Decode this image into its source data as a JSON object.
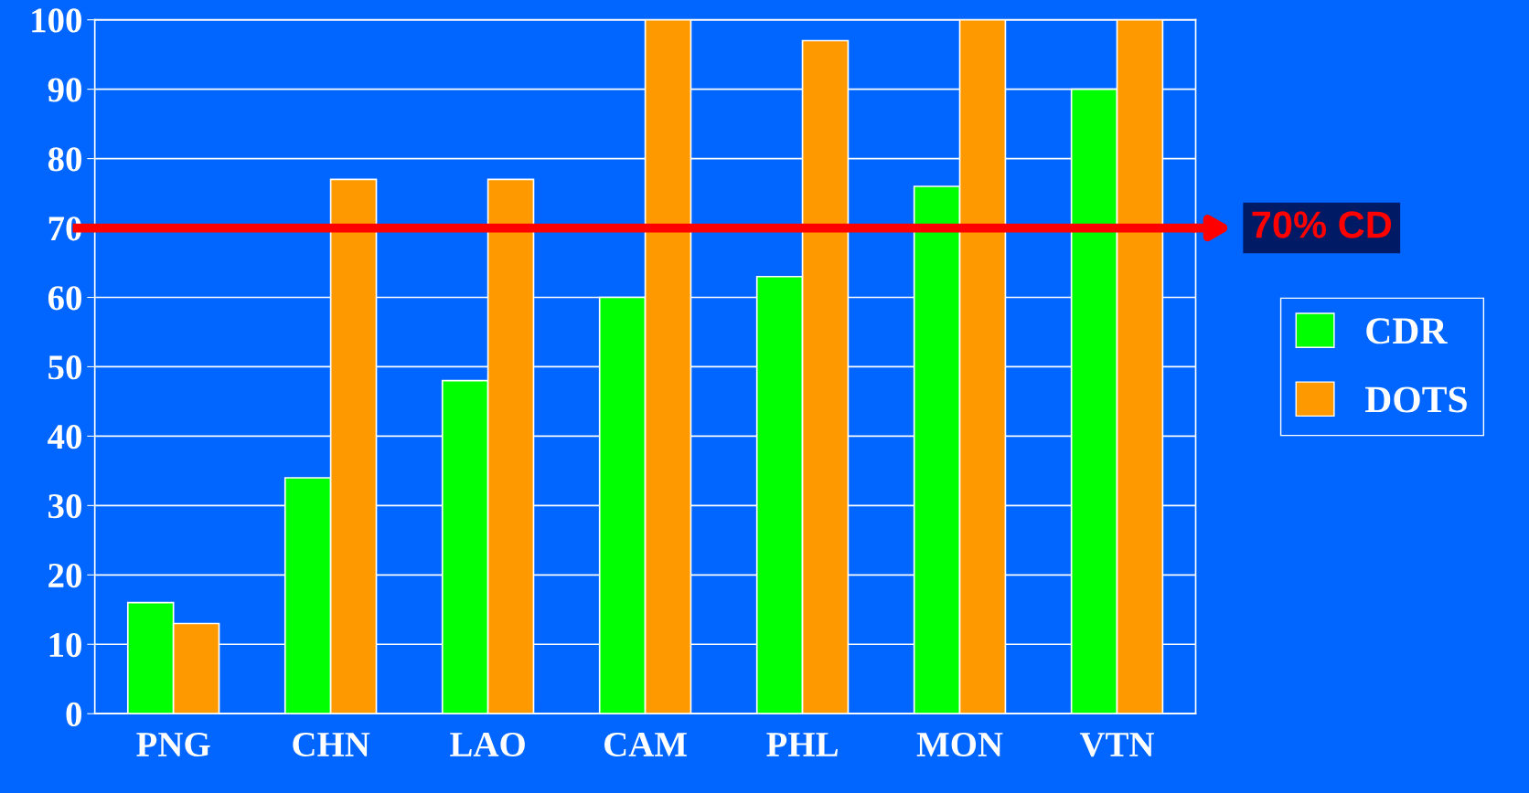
{
  "chart_data": {
    "type": "bar",
    "categories": [
      "PNG",
      "CHN",
      "LAO",
      "CAM",
      "PHL",
      "MON",
      "VTN"
    ],
    "series": [
      {
        "name": "CDR",
        "color": "#00ff00",
        "values": [
          16,
          34,
          48,
          60,
          63,
          76,
          90
        ]
      },
      {
        "name": "DOTS",
        "color": "#ff9900",
        "values": [
          13,
          77,
          77,
          100,
          97,
          100,
          100
        ]
      }
    ],
    "ylim": [
      0,
      100
    ],
    "yticks": [
      0,
      10,
      20,
      30,
      40,
      50,
      60,
      70,
      80,
      90,
      100
    ],
    "grid": "y",
    "legend": "right",
    "ref_lines": [
      {
        "axis": "y",
        "value": 70,
        "label": "70% CD",
        "color": "#ff0000"
      }
    ]
  }
}
